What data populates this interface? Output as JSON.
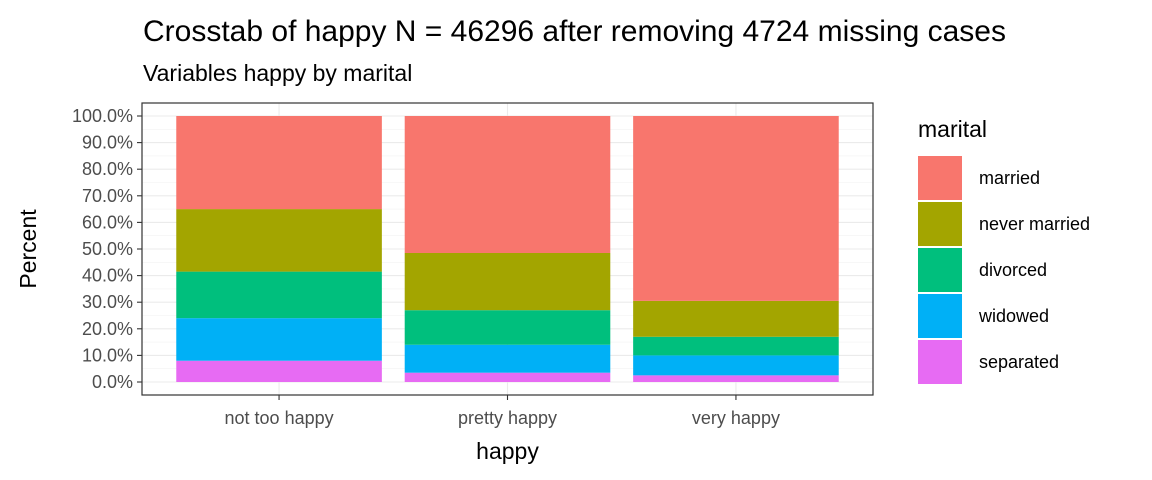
{
  "chart_data": {
    "type": "bar",
    "stacked": true,
    "title": "Crosstab of happy N = 46296 after removing 4724 missing cases",
    "subtitle": "Variables happy by marital",
    "xlabel": "happy",
    "ylabel": "Percent",
    "ylim": [
      0,
      100
    ],
    "y_ticks": [
      "0.0%",
      "10.0%",
      "20.0%",
      "30.0%",
      "40.0%",
      "50.0%",
      "60.0%",
      "70.0%",
      "80.0%",
      "90.0%",
      "100.0%"
    ],
    "grid": true,
    "legend_title": "marital",
    "legend_position": "right",
    "categories": [
      "not too happy",
      "pretty happy",
      "very happy"
    ],
    "series": [
      {
        "name": "married",
        "color": "#F8766D",
        "values": [
          35.0,
          51.5,
          69.5
        ]
      },
      {
        "name": "never married",
        "color": "#A3A500",
        "values": [
          23.5,
          21.5,
          13.5
        ]
      },
      {
        "name": "divorced",
        "color": "#00BF7D",
        "values": [
          17.5,
          13.0,
          7.0
        ]
      },
      {
        "name": "widowed",
        "color": "#00B0F6",
        "values": [
          16.0,
          10.5,
          7.5
        ]
      },
      {
        "name": "separated",
        "color": "#E76BF3",
        "values": [
          8.0,
          3.5,
          2.5
        ]
      }
    ]
  }
}
